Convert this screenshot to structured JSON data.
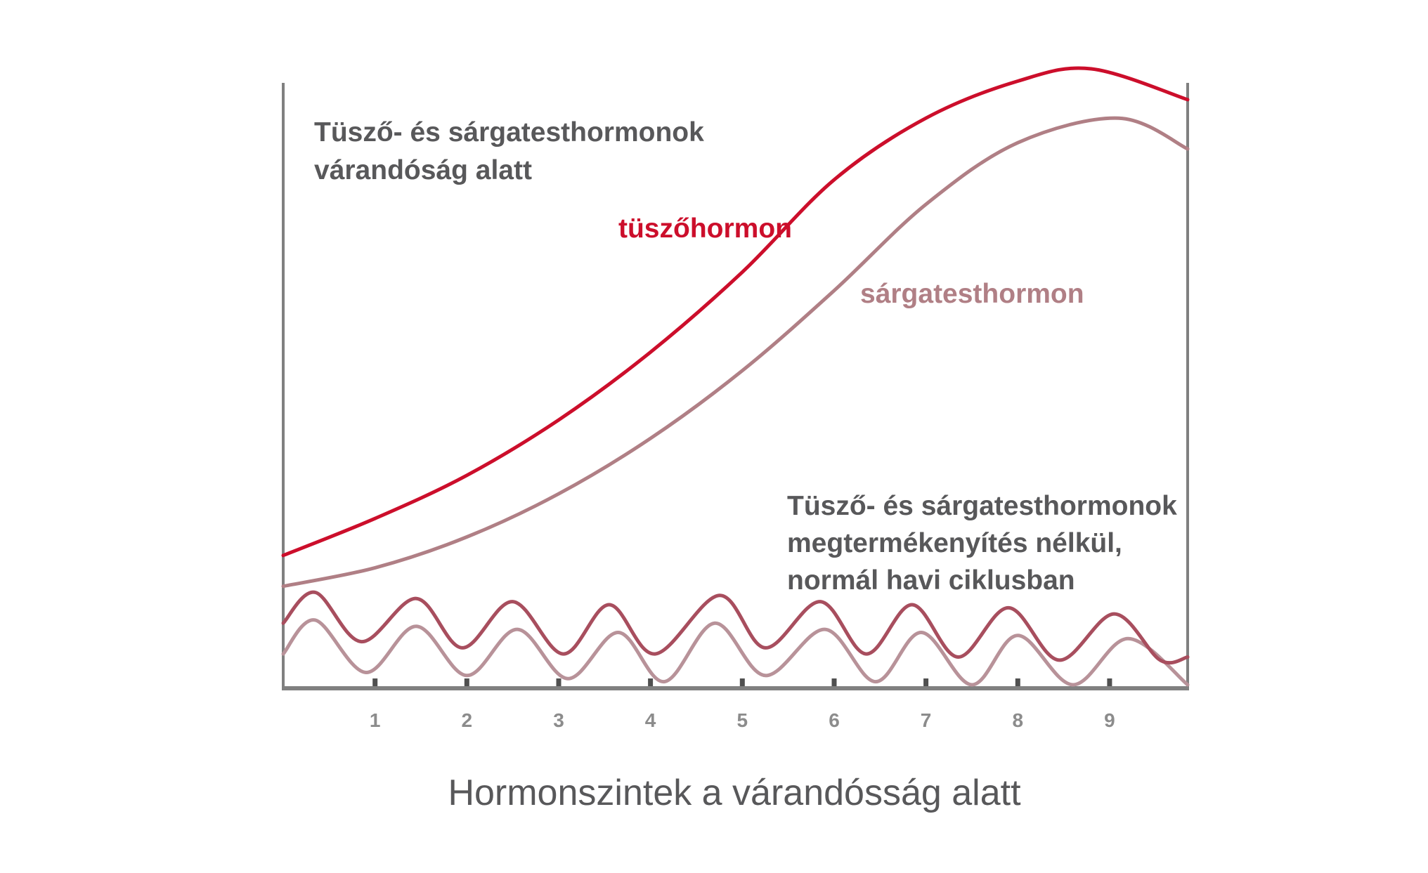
{
  "chart_data": {
    "type": "line",
    "title": "Hormonszintek a várandósság alatt",
    "xlabel": "",
    "ylabel": "",
    "xlim": [
      0,
      9.85
    ],
    "ylim": [
      0,
      100
    ],
    "x_ticks": [
      "1",
      "2",
      "3",
      "4",
      "5",
      "6",
      "7",
      "8",
      "9"
    ],
    "grid": false,
    "legend": "none",
    "annotations": {
      "pregnancy_heading": [
        "Tüsző- és sárgatesthormonok",
        "várandóság alatt"
      ],
      "cycle_heading": [
        "Tüsző- és sárgatesthormonok",
        "megtermékenyítés nélkül,",
        "normál havi ciklusban"
      ]
    },
    "series": [
      {
        "name": "tüszőhormon",
        "color": "#cc0e2b",
        "x": [
          0,
          1,
          2,
          3,
          4,
          5,
          6,
          7,
          8,
          8.8,
          9.85
        ],
        "values": [
          21,
          27,
          34,
          43,
          54,
          67,
          82,
          92,
          98,
          100,
          95
        ]
      },
      {
        "name": "sárgatesthormon",
        "color": "#b07f85",
        "x": [
          0,
          1,
          2,
          3,
          4,
          5,
          6,
          7,
          8,
          9.1,
          9.85
        ],
        "values": [
          16,
          19,
          24,
          31,
          40,
          51,
          64,
          78,
          88,
          92,
          87
        ]
      },
      {
        "color": "#a84e5e",
        "x": [
          0,
          0.35,
          0.85,
          1.45,
          1.95,
          2.5,
          3.05,
          3.55,
          4.05,
          4.75,
          5.25,
          5.85,
          6.35,
          6.85,
          7.35,
          7.9,
          8.45,
          9.05,
          9.55,
          9.85
        ],
        "values": [
          10,
          15,
          7,
          14,
          6,
          13.5,
          5,
          13,
          5,
          14.5,
          6,
          13.5,
          5,
          13,
          4.5,
          12.5,
          4,
          11.5,
          4,
          4.5
        ]
      },
      {
        "color": "#b89299",
        "x": [
          0,
          0.35,
          0.9,
          1.45,
          2.0,
          2.55,
          3.1,
          3.65,
          4.15,
          4.7,
          5.25,
          5.9,
          6.45,
          6.95,
          7.5,
          8.0,
          8.6,
          9.2,
          9.85
        ],
        "values": [
          5,
          10.5,
          2,
          9.5,
          1.5,
          9,
          1,
          8.5,
          0.5,
          10,
          1.5,
          9,
          0.5,
          8.5,
          0,
          8,
          0,
          7.5,
          0
        ]
      }
    ]
  }
}
